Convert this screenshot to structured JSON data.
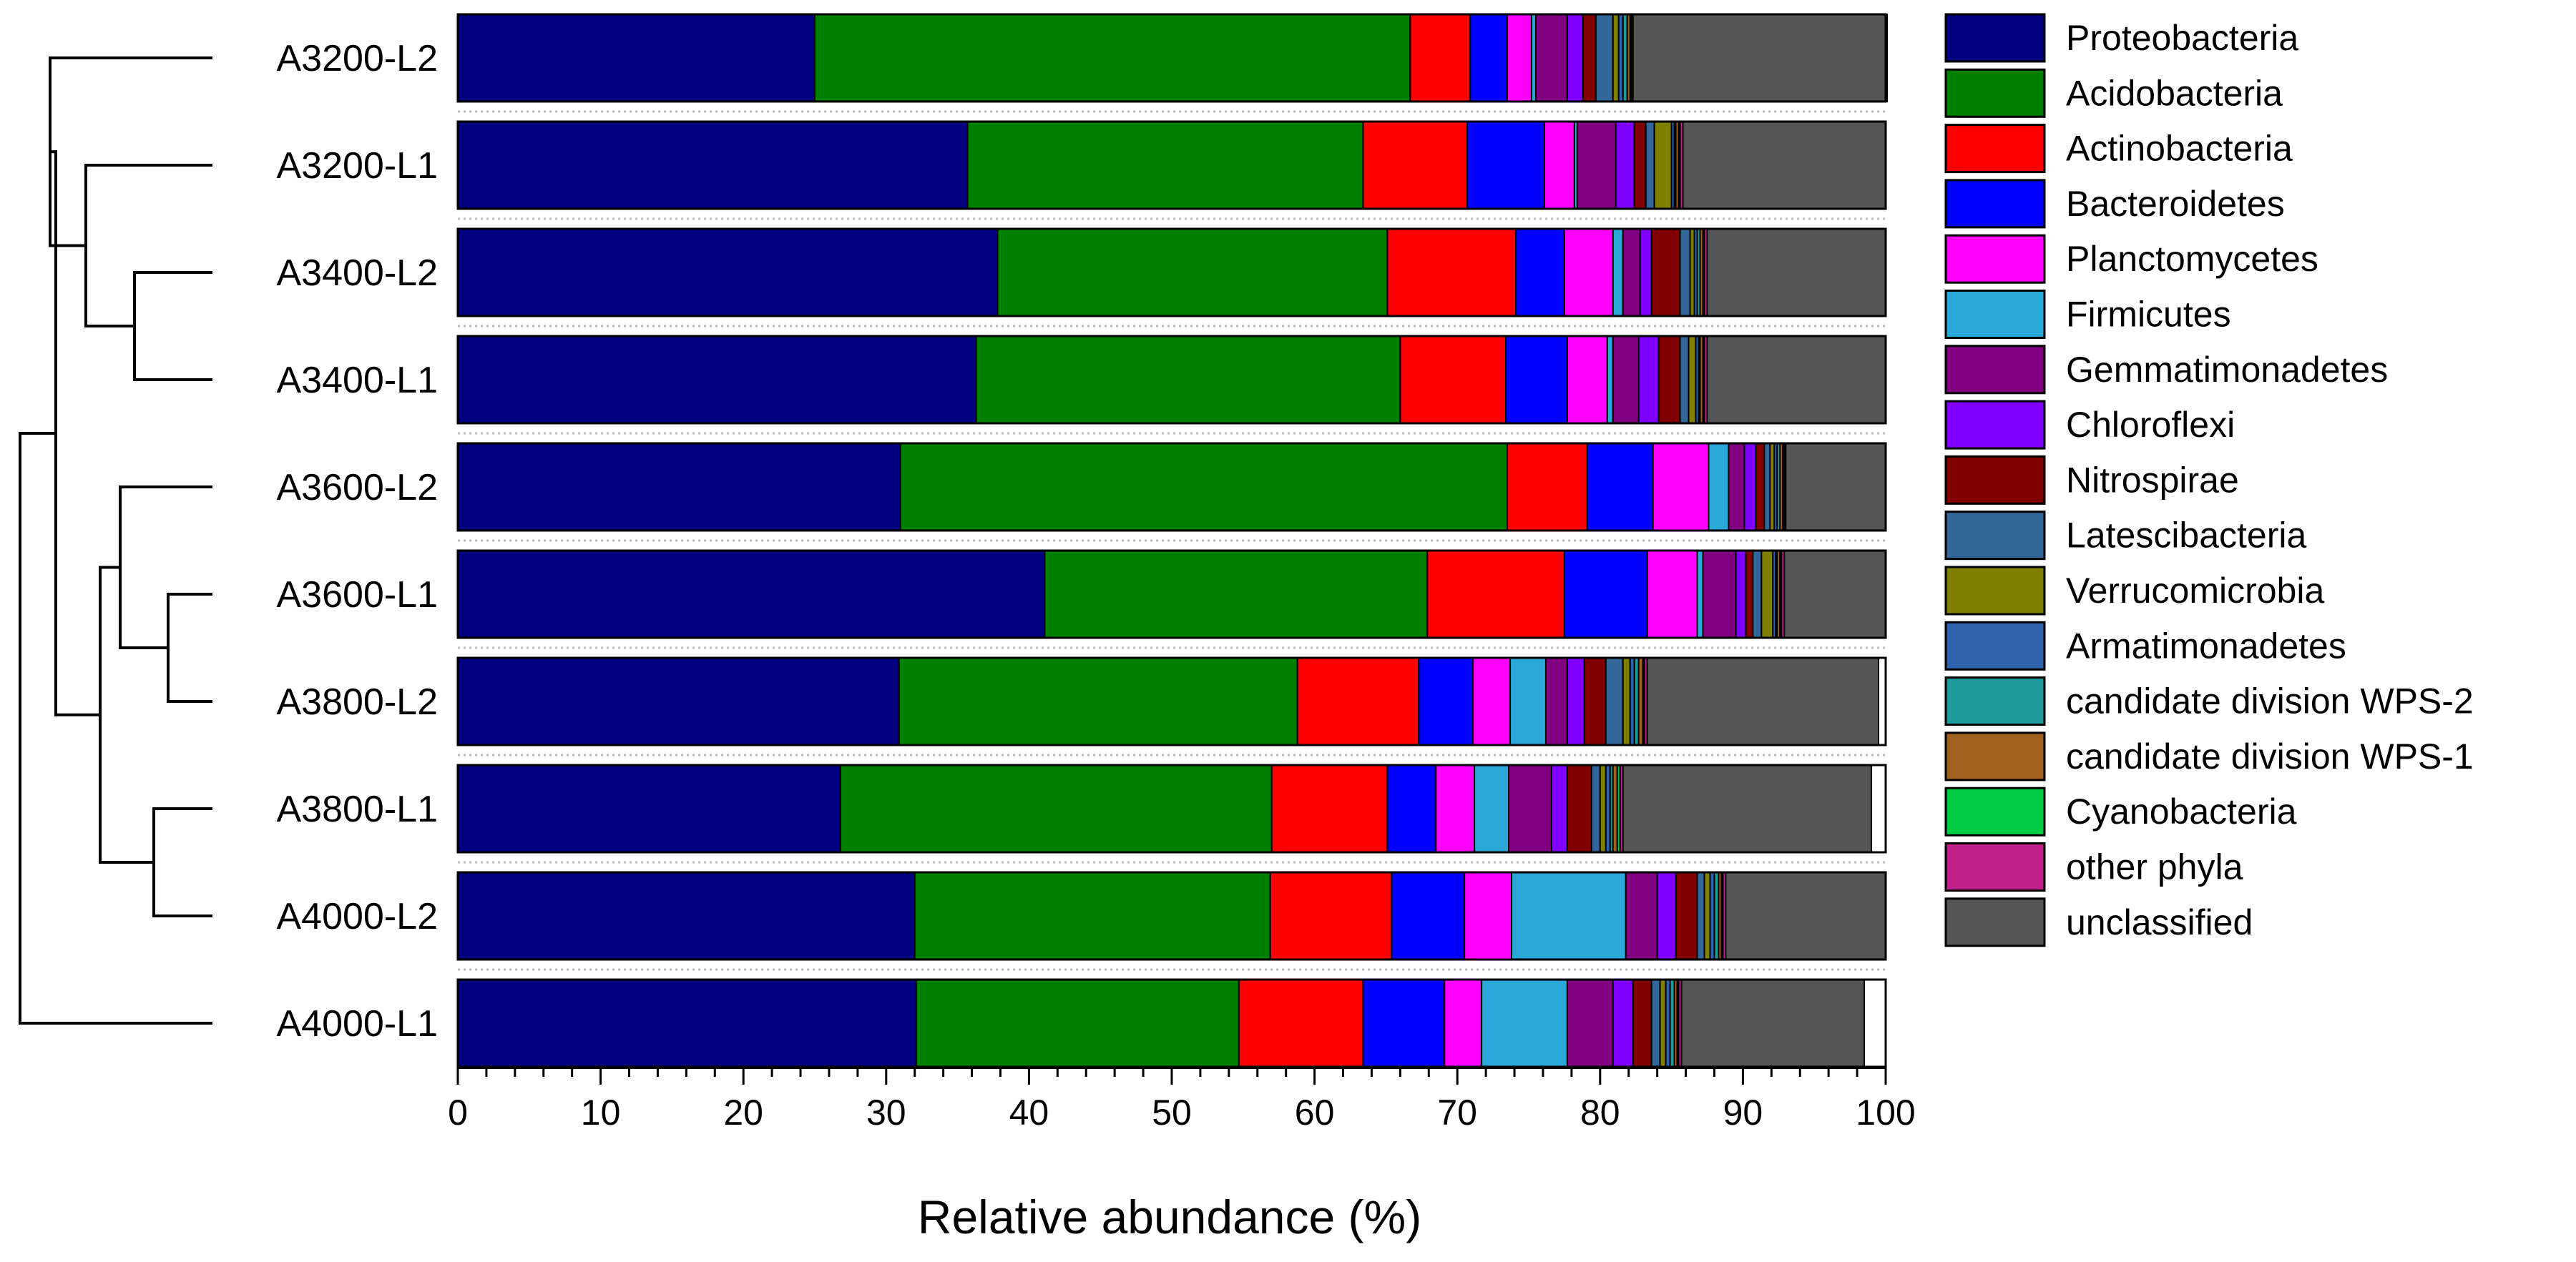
{
  "chart_data": {
    "type": "bar",
    "orientation": "horizontal",
    "stacked": true,
    "title": "",
    "xlabel": "Relative abundance (%)",
    "ylabel": "",
    "xlim": [
      0,
      100
    ],
    "x_ticks": [
      0,
      10,
      20,
      30,
      40,
      50,
      60,
      70,
      80,
      90,
      100
    ],
    "grid": false,
    "legend_position": "right",
    "dendrogram": "left",
    "categories": [
      "A3200-L2",
      "A3200-L1",
      "A3400-L2",
      "A3400-L1",
      "A3600-L2",
      "A3600-L1",
      "A3800-L2",
      "A3800-L1",
      "A4000-L2",
      "A4000-L1"
    ],
    "series": [
      {
        "name": "Proteobacteria",
        "color": "#000080",
        "values": [
          25.0,
          35.7,
          37.8,
          36.3,
          31.0,
          41.1,
          30.9,
          26.8,
          32.0,
          32.1
        ]
      },
      {
        "name": "Acidobacteria",
        "color": "#008000",
        "values": [
          41.7,
          27.7,
          27.3,
          29.7,
          42.5,
          26.8,
          27.9,
          30.2,
          24.9,
          22.6
        ]
      },
      {
        "name": "Actinobacteria",
        "color": "#FF0000",
        "values": [
          4.2,
          7.3,
          9.0,
          7.4,
          5.6,
          9.6,
          8.5,
          8.1,
          8.5,
          8.7
        ]
      },
      {
        "name": "Bacteroidetes",
        "color": "#0000FF",
        "values": [
          2.6,
          5.4,
          3.4,
          4.3,
          4.6,
          5.8,
          3.8,
          3.4,
          5.1,
          5.7
        ]
      },
      {
        "name": "Planctomycetes",
        "color": "#FF00FF",
        "values": [
          1.7,
          2.1,
          3.4,
          2.8,
          3.9,
          3.5,
          2.6,
          2.7,
          3.3,
          2.6
        ]
      },
      {
        "name": "Firmicutes",
        "color": "#2AA8D8",
        "values": [
          0.3,
          0.2,
          0.7,
          0.4,
          1.4,
          0.4,
          2.5,
          2.4,
          8.0,
          6.0
        ]
      },
      {
        "name": "Gemmatimonadetes",
        "color": "#800080",
        "values": [
          2.2,
          2.7,
          1.2,
          1.8,
          1.1,
          2.3,
          1.5,
          3.0,
          2.2,
          3.2
        ]
      },
      {
        "name": "Chloroflexi",
        "color": "#8000FF",
        "values": [
          1.1,
          1.3,
          0.8,
          1.4,
          0.8,
          0.7,
          1.2,
          1.1,
          1.3,
          1.4
        ]
      },
      {
        "name": "Nitrospirae",
        "color": "#800000",
        "values": [
          0.9,
          0.8,
          2.0,
          1.5,
          0.6,
          0.5,
          1.5,
          1.7,
          1.5,
          1.3
        ]
      },
      {
        "name": "Latescibacteria",
        "color": "#336699",
        "values": [
          1.2,
          0.6,
          0.7,
          0.6,
          0.4,
          0.6,
          1.2,
          0.6,
          0.5,
          0.6
        ]
      },
      {
        "name": "Verrucomicrobia",
        "color": "#808000",
        "values": [
          0.4,
          1.2,
          0.3,
          0.5,
          0.3,
          0.8,
          0.5,
          0.4,
          0.4,
          0.4
        ]
      },
      {
        "name": "Armatimonadetes",
        "color": "#2F63AD",
        "values": [
          0.3,
          0.2,
          0.2,
          0.2,
          0.2,
          0.2,
          0.3,
          0.3,
          0.3,
          0.3
        ]
      },
      {
        "name": "candidate division WPS-2",
        "color": "#1E9A9A",
        "values": [
          0.3,
          0.1,
          0.2,
          0.1,
          0.2,
          0.1,
          0.3,
          0.2,
          0.3,
          0.3
        ]
      },
      {
        "name": "candidate division WPS-1",
        "color": "#A0601E",
        "values": [
          0.2,
          0.2,
          0.2,
          0.2,
          0.2,
          0.2,
          0.3,
          0.3,
          0.2,
          0.2
        ]
      },
      {
        "name": "Cyanobacteria",
        "color": "#00CC44",
        "values": [
          0.1,
          0.1,
          0.1,
          0.1,
          0.1,
          0.1,
          0.1,
          0.2,
          0.1,
          0.1
        ]
      },
      {
        "name": "other phyla",
        "color": "#C0208A",
        "values": [
          0.1,
          0.2,
          0.2,
          0.2,
          0.1,
          0.2,
          0.2,
          0.2,
          0.2,
          0.2
        ]
      },
      {
        "name": "unclassified",
        "color": "#555555",
        "values": [
          17.8,
          14.2,
          12.5,
          12.5,
          7.0,
          7.1,
          16.2,
          17.4,
          11.2,
          12.8
        ]
      }
    ]
  }
}
